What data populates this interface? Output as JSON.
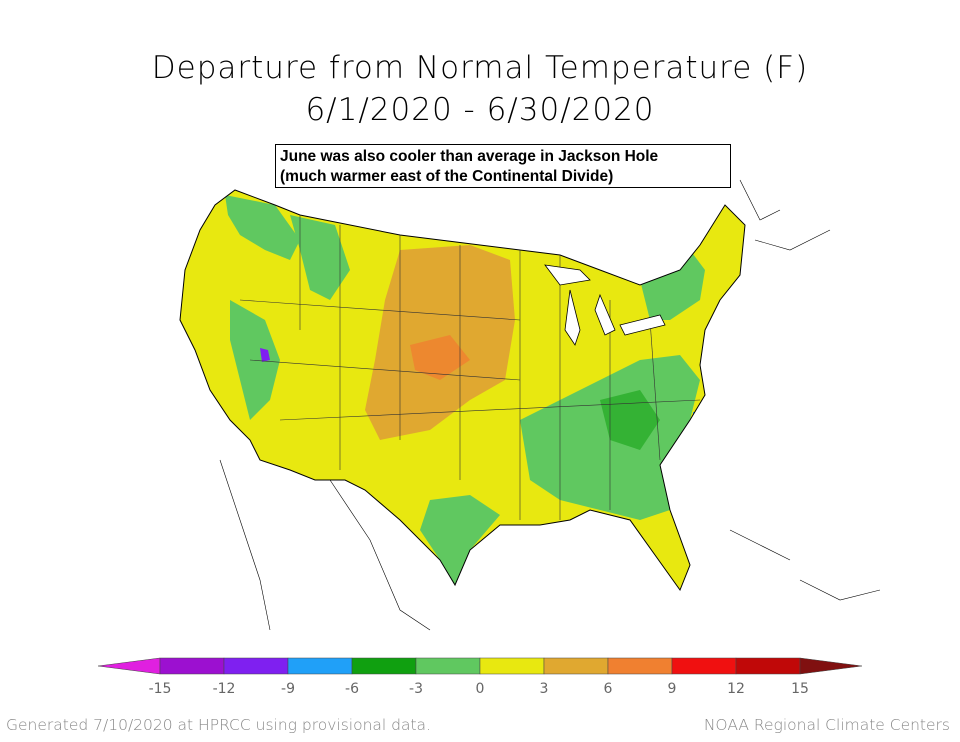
{
  "header": {
    "title": "Departure from Normal Temperature (F)",
    "subtitle": "6/1/2020 - 6/30/2020"
  },
  "annotation": {
    "line1": "June was also cooler than average in Jackson Hole",
    "line2": "(much warmer east of the Continental Divide)"
  },
  "legend": {
    "bins": [
      {
        "color": "#e020e0"
      },
      {
        "color": "#9c10d0"
      },
      {
        "color": "#7f20f0"
      },
      {
        "color": "#20a0f8"
      },
      {
        "color": "#10a010"
      },
      {
        "color": "#60c860"
      },
      {
        "color": "#e8e810"
      },
      {
        "color": "#e0a830"
      },
      {
        "color": "#f08030"
      },
      {
        "color": "#f01010"
      },
      {
        "color": "#c00808"
      },
      {
        "color": "#801010"
      }
    ],
    "ticks": [
      "-15",
      "-12",
      "-9",
      "-6",
      "-3",
      "0",
      "3",
      "6",
      "9",
      "12",
      "15"
    ]
  },
  "footer": {
    "left": "Generated 7/10/2020 at HPRCC using provisional data.",
    "right": "NOAA Regional Climate Centers"
  }
}
